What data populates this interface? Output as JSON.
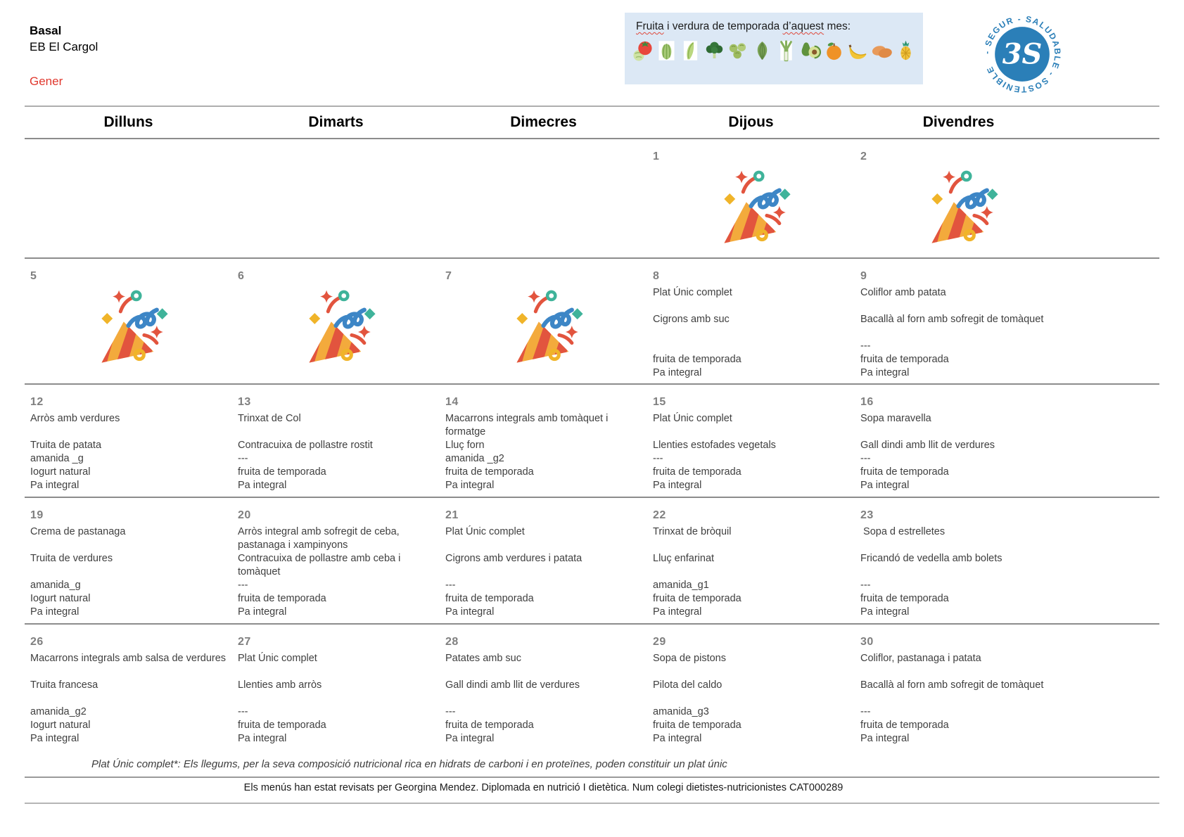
{
  "header": {
    "program": "Basal",
    "school": "EB El Cargol",
    "month": "Gener",
    "month_color": "#e0382e"
  },
  "season_banner": {
    "title_word1": "Fruita",
    "title_mid": "i verdura de temporada",
    "title_word2": "d’aquest",
    "title_end": "mes:",
    "background": "#dce8f5",
    "items": [
      "tomato-lettuce",
      "romaine",
      "chard",
      "broccoli",
      "brussels-sprouts",
      "artichoke",
      "leek",
      "avocado",
      "mandarin",
      "banana",
      "sweet-potato",
      "pineapple"
    ]
  },
  "logo": {
    "ring_text": "- SEGUR - SALUDABLE - SOSTENIBLE ",
    "center": "3S",
    "color": "#2b7fb8"
  },
  "calendar": {
    "day_headers": [
      "Dilluns",
      "Dimarts",
      "Dimecres",
      "Dijous",
      "Divendres"
    ],
    "weeks": [
      {
        "days": [
          null,
          null,
          null,
          {
            "number": "1",
            "party": true
          },
          {
            "number": "2",
            "party": true
          }
        ]
      },
      {
        "days": [
          {
            "number": "5",
            "party": true
          },
          {
            "number": "6",
            "party": true
          },
          {
            "number": "7",
            "party": true
          },
          {
            "number": "8",
            "lines": [
              "Plat Únic complet",
              "",
              "Cigrons amb suc",
              "",
              "",
              "fruita de temporada",
              "Pa integral"
            ]
          },
          {
            "number": "9",
            "lines": [
              "Coliflor amb patata",
              "",
              "Bacallà al forn amb sofregit de tomàquet",
              "",
              "---",
              "fruita de temporada",
              "Pa integral"
            ]
          }
        ]
      },
      {
        "days": [
          {
            "number": "12",
            "lines": [
              "Arròs amb verdures",
              "",
              "Truita de patata",
              "amanida _g",
              "Iogurt natural",
              "Pa integral"
            ]
          },
          {
            "number": "13",
            "lines": [
              "Trinxat de Col",
              "",
              "Contracuixa de pollastre rostit",
              "---",
              "fruita de temporada",
              "Pa integral"
            ]
          },
          {
            "number": "14",
            "lines": [
              "Macarrons integrals amb tomàquet i formatge",
              "Lluç forn",
              "amanida _g2",
              "fruita de temporada",
              "Pa integral"
            ]
          },
          {
            "number": "15",
            "lines": [
              "Plat Únic complet",
              "",
              "Llenties estofades vegetals",
              "---",
              "fruita de temporada",
              "Pa integral"
            ]
          },
          {
            "number": "16",
            "lines": [
              "Sopa maravella",
              "",
              "Gall dindi amb llit de verdures",
              "---",
              "fruita de temporada",
              "Pa integral"
            ]
          }
        ]
      },
      {
        "days": [
          {
            "number": "19",
            "lines": [
              "Crema de pastanaga",
              "",
              "Truita de verdures",
              "",
              "amanida_g",
              "Iogurt natural",
              "Pa integral"
            ]
          },
          {
            "number": "20",
            "lines": [
              "Arròs integral amb sofregit de ceba, pastanaga i xampinyons",
              "Contracuixa de pollastre amb ceba i tomàquet",
              "---",
              "fruita de temporada",
              "Pa integral"
            ]
          },
          {
            "number": "21",
            "lines": [
              "Plat Únic complet",
              "",
              "Cigrons amb verdures i patata",
              "",
              "---",
              "fruita de temporada",
              "Pa integral"
            ]
          },
          {
            "number": "22",
            "lines": [
              "Trinxat de bròquil",
              "",
              "Lluç enfarinat",
              "",
              "amanida_g1",
              "fruita de temporada",
              "Pa integral"
            ]
          },
          {
            "number": "23",
            "lines": [
              " Sopa d estrelletes",
              "",
              "Fricandó de vedella amb bolets",
              "",
              "---",
              "fruita de temporada",
              "Pa integral"
            ]
          }
        ]
      },
      {
        "days": [
          {
            "number": "26",
            "lines": [
              "Macarrons integrals amb salsa de verdures",
              "",
              "Truita francesa",
              "",
              "amanida_g2",
              "Iogurt natural",
              "Pa integral"
            ]
          },
          {
            "number": "27",
            "lines": [
              "Plat Únic complet",
              "",
              "Llenties amb arròs",
              "",
              "---",
              "fruita de temporada",
              "Pa integral"
            ]
          },
          {
            "number": "28",
            "lines": [
              "Patates amb suc",
              "",
              "Gall dindi amb llit de verdures",
              "",
              "---",
              "fruita de temporada",
              "Pa integral"
            ]
          },
          {
            "number": "29",
            "lines": [
              "Sopa de pistons",
              "",
              "Pilota del caldo",
              "",
              "amanida_g3",
              "fruita de temporada",
              "Pa integral"
            ]
          },
          {
            "number": "30",
            "lines": [
              "Coliflor, pastanaga i patata",
              "",
              "Bacallà al forn amb sofregit de tomàquet",
              "",
              "---",
              "fruita de temporada",
              "Pa integral"
            ]
          }
        ]
      }
    ]
  },
  "footnote": "Plat Únic complet*: Els llegums, per la seva composició nutricional rica en hidrats de carboni i en proteïnes, poden constituir un plat únic",
  "footer": "Els menús han estat revisats per Georgina Mendez. Diplomada en nutrició I dietètica. Num colegi dietistes-nutricionistes CAT000289"
}
